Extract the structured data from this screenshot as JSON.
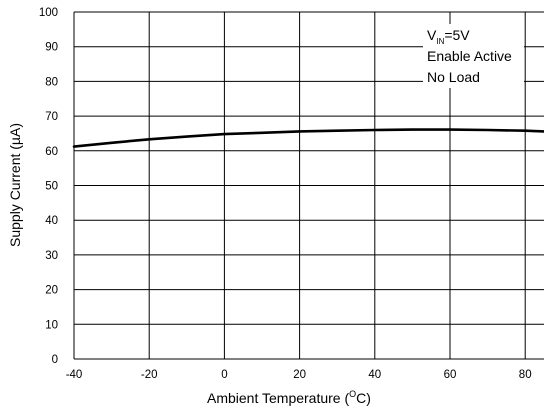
{
  "chart_data": {
    "type": "line",
    "xlabel": "Ambient Temperature (",
    "xlabel_unit_superscript": "O",
    "xlabel_unit": "C)",
    "ylabel": "Supply Current (µA)",
    "xlim": [
      -40,
      85
    ],
    "ylim": [
      0,
      100
    ],
    "x_ticks": [
      -40,
      -20,
      0,
      20,
      40,
      60,
      80
    ],
    "y_ticks": [
      0,
      10,
      20,
      30,
      40,
      50,
      60,
      70,
      80,
      90,
      100
    ],
    "grid": true,
    "series": [
      {
        "x": [
          -40,
          -30,
          -20,
          -10,
          0,
          10,
          20,
          30,
          40,
          50,
          60,
          70,
          80,
          85
        ],
        "y": [
          61.2,
          62.3,
          63.3,
          64.1,
          64.8,
          65.2,
          65.6,
          65.8,
          66.0,
          66.1,
          66.1,
          66.0,
          65.8,
          65.6
        ]
      }
    ],
    "annotation": {
      "line1_main": "V",
      "line1_subscript": "IN",
      "line1_rest": "=5V",
      "line2": "Enable Active",
      "line3": "No Load"
    }
  }
}
